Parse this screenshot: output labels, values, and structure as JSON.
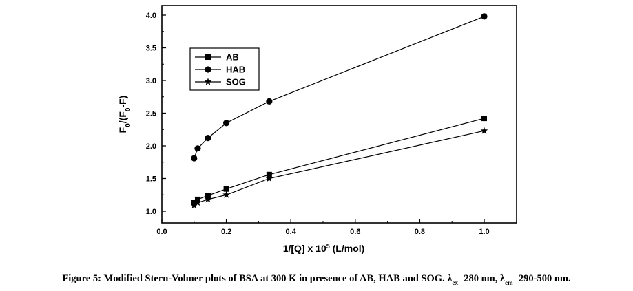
{
  "chart_data": {
    "type": "scatter",
    "xlabel": {
      "main": "1/[Q] x 10",
      "sup": "5",
      "unit": " (L/mol)"
    },
    "ylabel": {
      "t1": "F",
      "s1": "0",
      "t2": "/(F",
      "s2": "0",
      "t3": "-F)"
    },
    "xlim": [
      0.0,
      1.0
    ],
    "ylim": [
      1.0,
      4.0
    ],
    "xticks": [
      "0.0",
      "0.2",
      "0.4",
      "0.6",
      "0.8",
      "1.0"
    ],
    "yticks": [
      "1.0",
      "1.5",
      "2.0",
      "2.5",
      "3.0",
      "3.5",
      "4.0"
    ],
    "grid": false,
    "legend_position": "top-left",
    "series": [
      {
        "name": "AB",
        "marker": "square",
        "color": "#000000",
        "x": [
          0.1,
          0.111,
          0.143,
          0.2,
          0.333,
          1.0
        ],
        "y": [
          1.13,
          1.18,
          1.24,
          1.34,
          1.56,
          2.42
        ]
      },
      {
        "name": "HAB",
        "marker": "circle",
        "color": "#000000",
        "x": [
          0.1,
          0.111,
          0.143,
          0.2,
          0.333,
          1.0
        ],
        "y": [
          1.81,
          1.96,
          2.12,
          2.35,
          2.68,
          3.98
        ]
      },
      {
        "name": "SOG",
        "marker": "star",
        "color": "#000000",
        "x": [
          0.1,
          0.111,
          0.143,
          0.2,
          0.333,
          1.0
        ],
        "y": [
          1.09,
          1.13,
          1.18,
          1.25,
          1.5,
          2.23
        ]
      }
    ]
  },
  "caption": {
    "prefix": "Figure 5: Modified Stern-Volmer plots of BSA at 300 K in presence of AB, HAB and SOG. λ",
    "sub1": "ex",
    "mid": "=280 nm, λ",
    "sub2": "em",
    "suffix": "=290-500 nm."
  }
}
